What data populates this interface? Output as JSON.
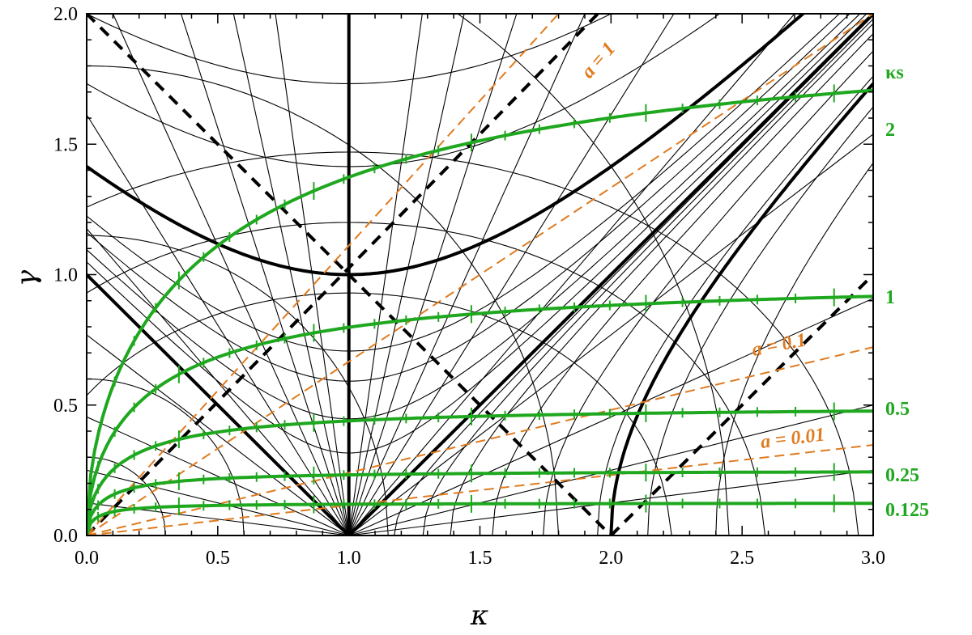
{
  "chart_data": {
    "type": "line",
    "xlabel": "κ",
    "ylabel": "γ",
    "xlim": [
      0,
      3
    ],
    "ylim": [
      0,
      2
    ],
    "xticks": [
      "0.0",
      "0.5",
      "1.0",
      "1.5",
      "2.0",
      "2.5",
      "3.0"
    ],
    "yticks": [
      "0.0",
      "0.5",
      "1.0",
      "1.5",
      "2.0"
    ],
    "colors": {
      "green": "#1fa81f",
      "orange": "#e07b1f",
      "black": "#000000"
    },
    "ks_header": "κs",
    "ks_series": [
      {
        "label": "2",
        "ks": 2
      },
      {
        "label": "1",
        "ks": 1
      },
      {
        "label": "0.5",
        "ks": 0.5
      },
      {
        "label": "0.25",
        "ks": 0.25
      },
      {
        "label": "0.125",
        "ks": 0.125
      }
    ],
    "a_lines": [
      {
        "label": "a = 1",
        "a": 1,
        "slope": 0.6667
      },
      {
        "label": "a = 0.1",
        "a": 0.1,
        "slope": 0.2407
      },
      {
        "label": "a = 0.01",
        "a": 0.01,
        "slope": 0.1158
      }
    ],
    "grid": false,
    "legend": "right"
  }
}
